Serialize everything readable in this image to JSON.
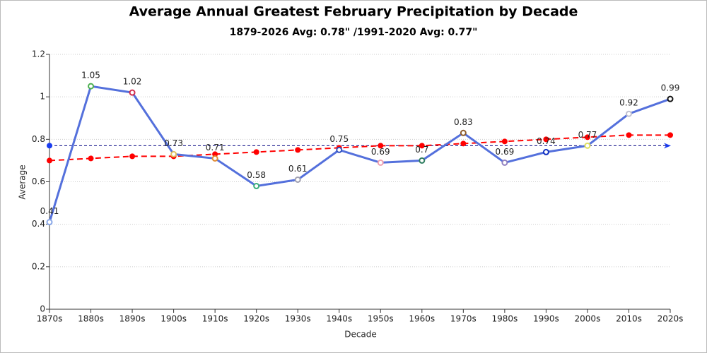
{
  "chart_data": {
    "type": "line",
    "title": "Average Annual Greatest February Precipitation by Decade",
    "subtitle": "1879-2026 Avg: 0.78\" /1991-2020 Avg: 0.77\"",
    "x_label": "Decade",
    "y_label": "Average",
    "categories": [
      "1870s",
      "1880s",
      "1890s",
      "1900s",
      "1910s",
      "1920s",
      "1930s",
      "1940s",
      "1950s",
      "1960s",
      "1970s",
      "1980s",
      "1990s",
      "2000s",
      "2010s",
      "2020s"
    ],
    "series": [
      {
        "color": "#5470dc",
        "style": "solid",
        "values": [
          0.41,
          1.05,
          1.02,
          0.73,
          0.71,
          0.58,
          0.61,
          0.75,
          0.69,
          0.7,
          0.83,
          0.69,
          0.74,
          0.77,
          0.92,
          0.99
        ],
        "marker_colors": [
          "#8aa8e8",
          "#4caf50",
          "#d32f4f",
          "#e0c060",
          "#e08a30",
          "#3cb07a",
          "#a0a0b0",
          "#3050c0",
          "#f0a0b0",
          "#2e7d60",
          "#8b5a2b",
          "#9080c0",
          "#1030c0",
          "#e0e060",
          "#c0c0d0",
          "#111111"
        ],
        "show_labels": true
      },
      {
        "color": "#ff0000",
        "style": "dashed",
        "values": [
          0.7,
          0.71,
          0.72,
          0.72,
          0.73,
          0.74,
          0.75,
          0.76,
          0.77,
          0.77,
          0.78,
          0.79,
          0.8,
          0.81,
          0.82,
          0.82
        ],
        "show_labels": false
      }
    ],
    "reference_line": {
      "value": 0.77,
      "color": "#000080"
    },
    "ylim": [
      0,
      1.2
    ],
    "yticks": [
      0,
      0.2,
      0.4,
      0.6,
      0.8,
      1,
      1.2
    ],
    "grid": true
  }
}
